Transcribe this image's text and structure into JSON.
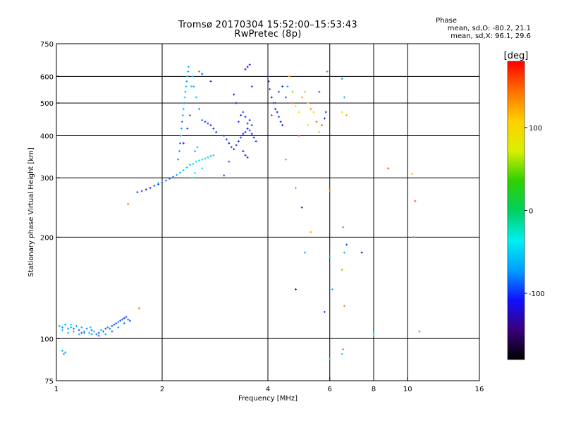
{
  "title": {
    "line1": "Tromsø 20170304 15:52:00–15:53:43",
    "line2": "RwPretec (8p)"
  },
  "phase_info": {
    "heading": "Phase",
    "o_mode": "mean, sd,O: -80.2, 21.1",
    "x_mode": "mean, sd,X:  96.1, 29.6"
  },
  "chart_data": {
    "type": "scatter",
    "xlabel": "Frequency [MHz]",
    "ylabel": "Stationary phase Virtual Height [km]",
    "x_scale": "log",
    "y_scale": "log",
    "xlim": [
      1,
      16
    ],
    "ylim": [
      75,
      750
    ],
    "x_ticks": [
      1,
      2,
      4,
      6,
      8,
      10,
      16
    ],
    "x_tick_labels": [
      "1",
      "2",
      "4",
      "6",
      "8",
      "10",
      "16"
    ],
    "x_grid": [
      2,
      4,
      6,
      8,
      10
    ],
    "y_ticks": [
      75,
      100,
      200,
      300,
      400,
      500,
      600,
      750
    ],
    "y_tick_labels": [
      "75",
      "100",
      "200",
      "300",
      "400",
      "500",
      "600",
      "750"
    ],
    "y_grid": [
      100,
      200,
      300,
      400,
      500,
      600
    ],
    "grid": true,
    "colorbar": {
      "label": "[deg]",
      "range": [
        -180,
        180
      ],
      "ticks": [
        100,
        0,
        -100
      ],
      "tick_labels": [
        "100",
        "0",
        "-100"
      ],
      "colors": [
        "#000000",
        "#3a007a",
        "#1010ff",
        "#00a0ff",
        "#00f0f0",
        "#00d060",
        "#30d000",
        "#d8f000",
        "#ffd000",
        "#ff7000",
        "#ff0000"
      ]
    },
    "points": [
      [
        1.02,
        109,
        -70
      ],
      [
        1.04,
        108,
        -75
      ],
      [
        1.06,
        110,
        -60
      ],
      [
        1.08,
        107,
        -80
      ],
      [
        1.1,
        108,
        -65
      ],
      [
        1.12,
        107,
        -85
      ],
      [
        1.14,
        109,
        -70
      ],
      [
        1.16,
        106,
        -90
      ],
      [
        1.18,
        108,
        -60
      ],
      [
        1.2,
        105,
        -75
      ],
      [
        1.22,
        107,
        -85
      ],
      [
        1.24,
        104,
        -70
      ],
      [
        1.26,
        106,
        -90
      ],
      [
        1.28,
        105,
        -60
      ],
      [
        1.3,
        103,
        -80
      ],
      [
        1.32,
        104,
        -100
      ],
      [
        1.34,
        106,
        -70
      ],
      [
        1.36,
        105,
        -85
      ],
      [
        1.38,
        107,
        -95
      ],
      [
        1.4,
        108,
        -75
      ],
      [
        1.42,
        107,
        -90
      ],
      [
        1.44,
        109,
        -100
      ],
      [
        1.46,
        110,
        -85
      ],
      [
        1.48,
        111,
        -95
      ],
      [
        1.5,
        112,
        -80
      ],
      [
        1.52,
        113,
        -100
      ],
      [
        1.54,
        114,
        -90
      ],
      [
        1.56,
        115,
        -105
      ],
      [
        1.58,
        116,
        -95
      ],
      [
        1.6,
        114,
        -85
      ],
      [
        1.04,
        106,
        -60
      ],
      [
        1.08,
        104,
        -70
      ],
      [
        1.12,
        105,
        -55
      ],
      [
        1.16,
        103,
        -65
      ],
      [
        1.2,
        104,
        -80
      ],
      [
        1.26,
        103,
        -70
      ],
      [
        1.32,
        102,
        -90
      ],
      [
        1.38,
        103,
        -60
      ],
      [
        1.44,
        105,
        -85
      ],
      [
        1.5,
        108,
        -70
      ],
      [
        1.56,
        111,
        -90
      ],
      [
        1.62,
        113,
        -100
      ],
      [
        1.1,
        110,
        -40
      ],
      [
        1.25,
        108,
        -50
      ],
      [
        1.18,
        104,
        -95
      ],
      [
        1.04,
        92,
        -60
      ],
      [
        1.05,
        90,
        -70
      ],
      [
        1.06,
        91,
        -80
      ],
      [
        1.72,
        123,
        140
      ],
      [
        1.6,
        251,
        150
      ],
      [
        1.95,
        289,
        -20
      ],
      [
        1.7,
        272,
        -105
      ],
      [
        1.75,
        274,
        -95
      ],
      [
        1.8,
        277,
        -110
      ],
      [
        1.85,
        280,
        -100
      ],
      [
        1.9,
        284,
        -90
      ],
      [
        1.95,
        287,
        -100
      ],
      [
        2.0,
        291,
        -95
      ],
      [
        2.05,
        294,
        -85
      ],
      [
        2.1,
        298,
        -80
      ],
      [
        2.15,
        302,
        -75
      ],
      [
        2.2,
        306,
        -70
      ],
      [
        2.25,
        311,
        -65
      ],
      [
        2.3,
        316,
        -60
      ],
      [
        2.35,
        322,
        -55
      ],
      [
        2.4,
        328,
        -60
      ],
      [
        2.22,
        340,
        -80
      ],
      [
        2.24,
        360,
        -70
      ],
      [
        2.25,
        380,
        -90
      ],
      [
        2.26,
        400,
        -75
      ],
      [
        2.27,
        420,
        -60
      ],
      [
        2.28,
        440,
        -85
      ],
      [
        2.29,
        460,
        -70
      ],
      [
        2.3,
        480,
        -65
      ],
      [
        2.31,
        500,
        -80
      ],
      [
        2.32,
        520,
        -55
      ],
      [
        2.33,
        540,
        -70
      ],
      [
        2.34,
        560,
        -60
      ],
      [
        2.35,
        580,
        -75
      ],
      [
        2.36,
        600,
        -55
      ],
      [
        2.37,
        620,
        -65
      ],
      [
        2.38,
        640,
        -60
      ],
      [
        2.36,
        420,
        -100
      ],
      [
        2.3,
        380,
        -110
      ],
      [
        2.4,
        460,
        -90
      ],
      [
        2.42,
        560,
        -50
      ],
      [
        2.45,
        330,
        -50
      ],
      [
        2.5,
        335,
        -45
      ],
      [
        2.55,
        338,
        -40
      ],
      [
        2.6,
        340,
        -45
      ],
      [
        2.65,
        342,
        -50
      ],
      [
        2.7,
        345,
        -55
      ],
      [
        2.75,
        348,
        -60
      ],
      [
        2.8,
        350,
        -50
      ],
      [
        2.48,
        360,
        -70
      ],
      [
        2.52,
        370,
        -60
      ],
      [
        2.44,
        600,
        -60
      ],
      [
        2.46,
        560,
        -70
      ],
      [
        2.5,
        520,
        -55
      ],
      [
        2.55,
        480,
        -80
      ],
      [
        2.6,
        445,
        -90
      ],
      [
        2.65,
        440,
        -100
      ],
      [
        2.7,
        435,
        -95
      ],
      [
        2.75,
        430,
        -105
      ],
      [
        2.8,
        420,
        -100
      ],
      [
        2.85,
        410,
        -110
      ],
      [
        2.44,
        300,
        -40
      ],
      [
        2.48,
        310,
        -50
      ],
      [
        2.6,
        320,
        -45
      ],
      [
        2.55,
        620,
        -70
      ],
      [
        2.6,
        610,
        -100
      ],
      [
        2.75,
        580,
        -110
      ],
      [
        3.0,
        400,
        -110
      ],
      [
        3.05,
        390,
        -100
      ],
      [
        3.1,
        380,
        -120
      ],
      [
        3.15,
        370,
        -95
      ],
      [
        3.2,
        365,
        -115
      ],
      [
        3.25,
        375,
        -105
      ],
      [
        3.3,
        385,
        -110
      ],
      [
        3.35,
        395,
        -100
      ],
      [
        3.4,
        405,
        -120
      ],
      [
        3.45,
        410,
        -105
      ],
      [
        3.5,
        420,
        -115
      ],
      [
        3.55,
        415,
        -100
      ],
      [
        3.6,
        405,
        -110
      ],
      [
        3.65,
        395,
        -120
      ],
      [
        3.7,
        385,
        -105
      ],
      [
        3.3,
        440,
        -100
      ],
      [
        3.35,
        460,
        -110
      ],
      [
        3.4,
        470,
        -95
      ],
      [
        3.45,
        455,
        -115
      ],
      [
        3.5,
        435,
        -105
      ],
      [
        3.55,
        445,
        -120
      ],
      [
        3.6,
        430,
        -100
      ],
      [
        3.4,
        360,
        -125
      ],
      [
        3.45,
        350,
        -110
      ],
      [
        3.5,
        345,
        -120
      ],
      [
        3.2,
        530,
        -110
      ],
      [
        3.25,
        500,
        -115
      ],
      [
        3.5,
        640,
        -120
      ],
      [
        3.55,
        650,
        -110
      ],
      [
        3.45,
        630,
        -115
      ],
      [
        3.6,
        560,
        -100
      ],
      [
        3.0,
        305,
        -100
      ],
      [
        3.1,
        335,
        -90
      ],
      [
        4.0,
        600,
        -120
      ],
      [
        4.02,
        580,
        -110
      ],
      [
        4.05,
        550,
        -100
      ],
      [
        4.1,
        520,
        -115
      ],
      [
        4.15,
        500,
        -105
      ],
      [
        4.2,
        480,
        -120
      ],
      [
        4.25,
        470,
        -110
      ],
      [
        4.3,
        455,
        -100
      ],
      [
        4.35,
        440,
        -115
      ],
      [
        4.4,
        430,
        -105
      ],
      [
        4.1,
        460,
        -90
      ],
      [
        4.2,
        500,
        -95
      ],
      [
        4.3,
        540,
        -100
      ],
      [
        4.4,
        560,
        -110
      ],
      [
        4.5,
        520,
        -90
      ],
      [
        4.55,
        560,
        -70
      ],
      [
        4.6,
        600,
        120
      ],
      [
        4.7,
        500,
        150
      ],
      [
        4.8,
        490,
        100
      ],
      [
        4.9,
        470,
        80
      ],
      [
        5.0,
        520,
        130
      ],
      [
        5.1,
        540,
        60
      ],
      [
        5.2,
        500,
        90
      ],
      [
        5.3,
        480,
        140
      ],
      [
        5.4,
        470,
        110
      ],
      [
        5.5,
        440,
        150
      ],
      [
        5.6,
        410,
        120
      ],
      [
        5.7,
        430,
        160
      ],
      [
        5.8,
        450,
        -110
      ],
      [
        5.85,
        470,
        -100
      ],
      [
        4.9,
        400,
        160
      ],
      [
        5.2,
        430,
        100
      ],
      [
        5.6,
        540,
        -90
      ],
      [
        5.9,
        620,
        150
      ],
      [
        4.7,
        540,
        50
      ],
      [
        4.8,
        280,
        40
      ],
      [
        5.0,
        245,
        -110
      ],
      [
        5.3,
        207,
        130
      ],
      [
        4.5,
        340,
        -50
      ],
      [
        6.0,
        275,
        140
      ],
      [
        5.1,
        180,
        -60
      ],
      [
        4.8,
        140,
        -110
      ],
      [
        5.8,
        120,
        -100
      ],
      [
        6.0,
        87,
        -40
      ],
      [
        6.1,
        140,
        -60
      ],
      [
        6.0,
        175,
        -60
      ],
      [
        6.5,
        590,
        -80
      ],
      [
        6.6,
        520,
        -60
      ],
      [
        6.5,
        470,
        80
      ],
      [
        6.7,
        460,
        120
      ],
      [
        6.55,
        214,
        150
      ],
      [
        6.6,
        180,
        -60
      ],
      [
        6.7,
        190,
        -100
      ],
      [
        6.5,
        160,
        50
      ],
      [
        6.6,
        125,
        140
      ],
      [
        6.55,
        93,
        150
      ],
      [
        6.5,
        90,
        -50
      ],
      [
        7.4,
        180,
        -120
      ],
      [
        8.0,
        103,
        -40
      ],
      [
        8.8,
        320,
        160
      ],
      [
        10.3,
        308,
        120
      ],
      [
        10.5,
        256,
        160
      ],
      [
        10.4,
        200,
        -60
      ],
      [
        10.8,
        105,
        -60
      ]
    ]
  }
}
